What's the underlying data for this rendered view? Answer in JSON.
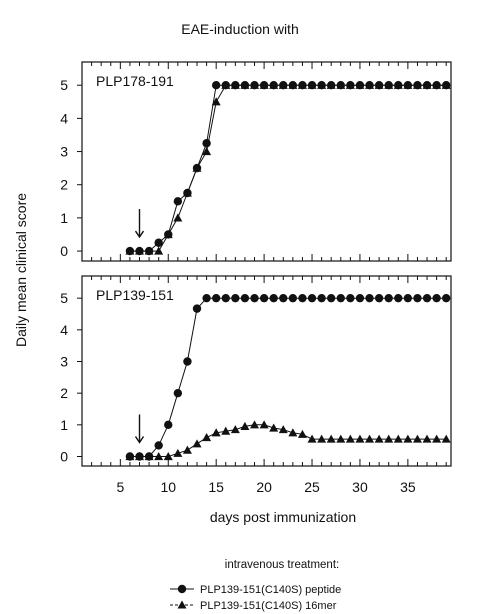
{
  "figure": {
    "title": "EAE-induction with",
    "ylabel": "Daily mean clinical score",
    "xlabel": "days post immunization",
    "legend": {
      "title": "intravenous treatment:",
      "entries": [
        {
          "label": "PLP139-151(C140S) peptide",
          "marker": "circle"
        },
        {
          "label": "PLP139-151(C140S) 16mer",
          "marker": "triangle"
        }
      ]
    },
    "colors": {
      "line": "#111111",
      "marker": "#111111",
      "background": "#ffffff"
    },
    "arrow_day": 7
  },
  "chart_data": [
    {
      "type": "line",
      "panel_label": "PLP178-191",
      "xlim": [
        1,
        39.5
      ],
      "ylim": [
        -0.3,
        5.7
      ],
      "xticks": [
        5,
        10,
        15,
        20,
        25,
        30,
        35
      ],
      "yticks": [
        0,
        1,
        2,
        3,
        4,
        5
      ],
      "series": [
        {
          "name": "PLP139-151(C140S) peptide",
          "marker": "circle",
          "x": [
            6,
            7,
            8,
            9,
            10,
            11,
            12,
            13,
            14,
            15,
            16,
            17,
            18,
            19,
            20,
            21,
            22,
            23,
            24,
            25,
            26,
            27,
            28,
            29,
            30,
            31,
            32,
            33,
            34,
            35,
            36,
            37,
            38,
            39
          ],
          "y": [
            0,
            0,
            0,
            0.25,
            0.5,
            1.5,
            1.75,
            2.5,
            3.25,
            5,
            5,
            5,
            5,
            5,
            5,
            5,
            5,
            5,
            5,
            5,
            5,
            5,
            5,
            5,
            5,
            5,
            5,
            5,
            5,
            5,
            5,
            5,
            5,
            5
          ]
        },
        {
          "name": "PLP139-151(C140S) 16mer",
          "marker": "triangle",
          "x": [
            6,
            7,
            8,
            9,
            10,
            11,
            12,
            13,
            14,
            15,
            16,
            17,
            18,
            19,
            20,
            21,
            22,
            23,
            24,
            25,
            26,
            27,
            28,
            29,
            30,
            31,
            32,
            33,
            34,
            35,
            36,
            37,
            38,
            39
          ],
          "y": [
            0,
            0,
            0,
            0,
            0.5,
            1.0,
            1.75,
            2.5,
            3.0,
            4.5,
            5,
            5,
            5,
            5,
            5,
            5,
            5,
            5,
            5,
            5,
            5,
            5,
            5,
            5,
            5,
            5,
            5,
            5,
            5,
            5,
            5,
            5,
            5,
            5
          ]
        }
      ]
    },
    {
      "type": "line",
      "panel_label": "PLP139-151",
      "xlim": [
        1,
        39.5
      ],
      "ylim": [
        -0.3,
        5.7
      ],
      "xticks": [
        5,
        10,
        15,
        20,
        25,
        30,
        35
      ],
      "yticks": [
        0,
        1,
        2,
        3,
        4,
        5
      ],
      "series": [
        {
          "name": "PLP139-151(C140S) peptide",
          "marker": "circle",
          "x": [
            6,
            7,
            8,
            9,
            10,
            11,
            12,
            13,
            14,
            15,
            16,
            17,
            18,
            19,
            20,
            21,
            22,
            23,
            24,
            25,
            26,
            27,
            28,
            29,
            30,
            31,
            32,
            33,
            34,
            35,
            36,
            37,
            38,
            39
          ],
          "y": [
            0,
            0,
            0,
            0.35,
            1.0,
            2.0,
            3.0,
            4.67,
            5,
            5,
            5,
            5,
            5,
            5,
            5,
            5,
            5,
            5,
            5,
            5,
            5,
            5,
            5,
            5,
            5,
            5,
            5,
            5,
            5,
            5,
            5,
            5,
            5,
            5
          ]
        },
        {
          "name": "PLP139-151(C140S) 16mer",
          "marker": "triangle",
          "x": [
            6,
            7,
            8,
            9,
            10,
            11,
            12,
            13,
            14,
            15,
            16,
            17,
            18,
            19,
            20,
            21,
            22,
            23,
            24,
            25,
            26,
            27,
            28,
            29,
            30,
            31,
            32,
            33,
            34,
            35,
            36,
            37,
            38,
            39
          ],
          "y": [
            0,
            0,
            0,
            0,
            0,
            0.1,
            0.2,
            0.4,
            0.6,
            0.75,
            0.8,
            0.85,
            0.95,
            1.0,
            1.0,
            0.9,
            0.85,
            0.75,
            0.7,
            0.55,
            0.55,
            0.55,
            0.55,
            0.55,
            0.55,
            0.55,
            0.55,
            0.55,
            0.55,
            0.55,
            0.55,
            0.55,
            0.55,
            0.55
          ]
        }
      ]
    }
  ]
}
